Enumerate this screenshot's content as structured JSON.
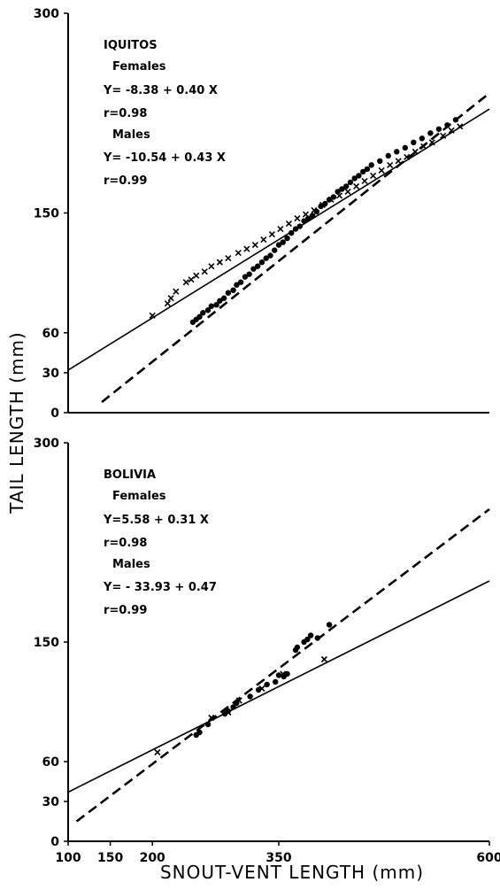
{
  "chart_data": [
    {
      "type": "scatter",
      "panel_label": "IQUITOS",
      "xlim": [
        100,
        600
      ],
      "ylim": [
        0,
        300
      ],
      "x_ticks": [],
      "y_ticks": [
        0,
        30,
        60,
        150,
        300
      ],
      "annotations": [
        "Females",
        "Y= -8.38 + 0.40 X",
        "r=0.98",
        "Males",
        "Y= -10.54 + 0.43 X",
        "r=0.99"
      ],
      "series": [
        {
          "name": "Females",
          "marker": "filled-circle",
          "line": {
            "style": "dashed",
            "x": [
              140,
              600
            ],
            "y": [
              8,
              240
            ]
          },
          "points": [
            [
              248,
              68
            ],
            [
              252,
              70
            ],
            [
              256,
              72
            ],
            [
              260,
              75
            ],
            [
              266,
              77
            ],
            [
              270,
              80
            ],
            [
              276,
              81
            ],
            [
              280,
              84
            ],
            [
              285,
              86
            ],
            [
              290,
              90
            ],
            [
              296,
              92
            ],
            [
              300,
              96
            ],
            [
              305,
              98
            ],
            [
              310,
              102
            ],
            [
              315,
              104
            ],
            [
              320,
              108
            ],
            [
              325,
              110
            ],
            [
              330,
              113
            ],
            [
              335,
              116
            ],
            [
              340,
              118
            ],
            [
              345,
              122
            ],
            [
              350,
              126
            ],
            [
              355,
              128
            ],
            [
              360,
              131
            ],
            [
              365,
              135
            ],
            [
              370,
              138
            ],
            [
              375,
              140
            ],
            [
              380,
              144
            ],
            [
              385,
              146
            ],
            [
              390,
              148
            ],
            [
              395,
              151
            ],
            [
              400,
              155
            ],
            [
              405,
              157
            ],
            [
              410,
              160
            ],
            [
              415,
              162
            ],
            [
              420,
              166
            ],
            [
              425,
              168
            ],
            [
              430,
              170
            ],
            [
              435,
              173
            ],
            [
              440,
              176
            ],
            [
              445,
              178
            ],
            [
              450,
              181
            ],
            [
              455,
              183
            ],
            [
              460,
              186
            ],
            [
              470,
              189
            ],
            [
              480,
              193
            ],
            [
              490,
              196
            ],
            [
              500,
              199
            ],
            [
              510,
              203
            ],
            [
              520,
              206
            ],
            [
              530,
              210
            ],
            [
              540,
              213
            ],
            [
              550,
              216
            ],
            [
              560,
              220
            ]
          ]
        },
        {
          "name": "Males",
          "marker": "cross",
          "line": {
            "style": "solid",
            "x": [
              100,
              600
            ],
            "y": [
              32,
              228
            ]
          },
          "points": [
            [
              200,
              73
            ],
            [
              218,
              82
            ],
            [
              222,
              86
            ],
            [
              228,
              91
            ],
            [
              240,
              98
            ],
            [
              246,
              100
            ],
            [
              252,
              103
            ],
            [
              262,
              106
            ],
            [
              270,
              110
            ],
            [
              280,
              113
            ],
            [
              290,
              116
            ],
            [
              302,
              120
            ],
            [
              312,
              123
            ],
            [
              322,
              126
            ],
            [
              332,
              130
            ],
            [
              342,
              134
            ],
            [
              352,
              138
            ],
            [
              362,
              142
            ],
            [
              372,
              146
            ],
            [
              382,
              149
            ],
            [
              392,
              152
            ],
            [
              402,
              156
            ],
            [
              412,
              160
            ],
            [
              422,
              163
            ],
            [
              432,
              166
            ],
            [
              442,
              170
            ],
            [
              452,
              174
            ],
            [
              462,
              178
            ],
            [
              472,
              182
            ],
            [
              482,
              186
            ],
            [
              492,
              189
            ],
            [
              502,
              192
            ],
            [
              512,
              196
            ],
            [
              522,
              200
            ],
            [
              532,
              203
            ],
            [
              545,
              208
            ],
            [
              555,
              212
            ],
            [
              565,
              215
            ]
          ]
        }
      ]
    },
    {
      "type": "scatter",
      "panel_label": "BOLIVIA",
      "xlim": [
        100,
        600
      ],
      "ylim": [
        0,
        300
      ],
      "x_ticks": [
        100,
        150,
        200,
        350,
        600
      ],
      "y_ticks": [
        0,
        30,
        60,
        150,
        300
      ],
      "annotations": [
        "Females",
        "Y=5.58 + 0.31 X",
        "r=0.98",
        "Males",
        "Y= - 33.93 + 0.47",
        "r=0.99"
      ],
      "series": [
        {
          "name": "Females",
          "marker": "filled-circle",
          "line": {
            "style": "dashed",
            "x": [
              110,
              600
            ],
            "y": [
              15,
              250
            ]
          },
          "points": [
            [
              252,
              80
            ],
            [
              256,
              82
            ],
            [
              266,
              88
            ],
            [
              286,
              96
            ],
            [
              290,
              98
            ],
            [
              296,
              101
            ],
            [
              300,
              104
            ],
            [
              316,
              109
            ],
            [
              326,
              114
            ],
            [
              336,
              118
            ],
            [
              346,
              120
            ],
            [
              350,
              125
            ],
            [
              356,
              124
            ],
            [
              360,
              126
            ],
            [
              370,
              144
            ],
            [
              372,
              146
            ],
            [
              380,
              150
            ],
            [
              384,
              152
            ],
            [
              388,
              155
            ],
            [
              396,
              153
            ],
            [
              410,
              163
            ]
          ]
        },
        {
          "name": "Males",
          "marker": "cross",
          "line": {
            "style": "solid",
            "x": [
              100,
              600
            ],
            "y": [
              37,
              196
            ]
          },
          "points": [
            [
              206,
              67
            ],
            [
              270,
              93
            ],
            [
              290,
              97
            ],
            [
              303,
              106
            ],
            [
              330,
              115
            ],
            [
              355,
              126
            ],
            [
              404,
              137
            ]
          ]
        }
      ]
    }
  ],
  "y_axis_title": "TAIL LENGTH (mm)",
  "x_axis_title": "SNOUT-VENT LENGTH (mm)"
}
